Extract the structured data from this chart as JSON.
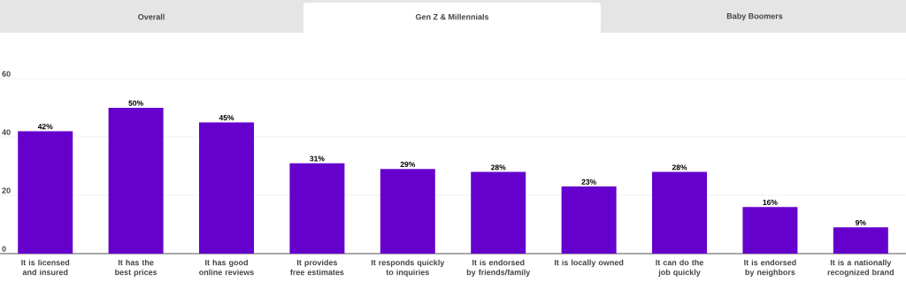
{
  "chart_data": {
    "type": "bar",
    "title": "Gen Z & Millennials",
    "annotations": [
      "Overall",
      "Baby Boomers"
    ],
    "categories": [
      "It is licensed and insured",
      "It has the best prices",
      "It has good online reviews",
      "It provides free estimates",
      "It responds quickly to inquiries",
      "It is endorsed by friends/family",
      "It is locally owned",
      "It can do the job quickly",
      "It is endorsed by neighbors",
      "It is a nationally recognized brand"
    ],
    "values": [
      42,
      50,
      45,
      31,
      29,
      28,
      23,
      28,
      16,
      9
    ],
    "value_labels": [
      "42%",
      "50%",
      "45%",
      "31%",
      "29%",
      "28%",
      "23%",
      "28%",
      "16%",
      "9%"
    ],
    "color": "#6600cc",
    "ylim": [
      0,
      60
    ],
    "yticks": [
      0,
      20,
      40,
      60
    ],
    "grid": "y"
  }
}
